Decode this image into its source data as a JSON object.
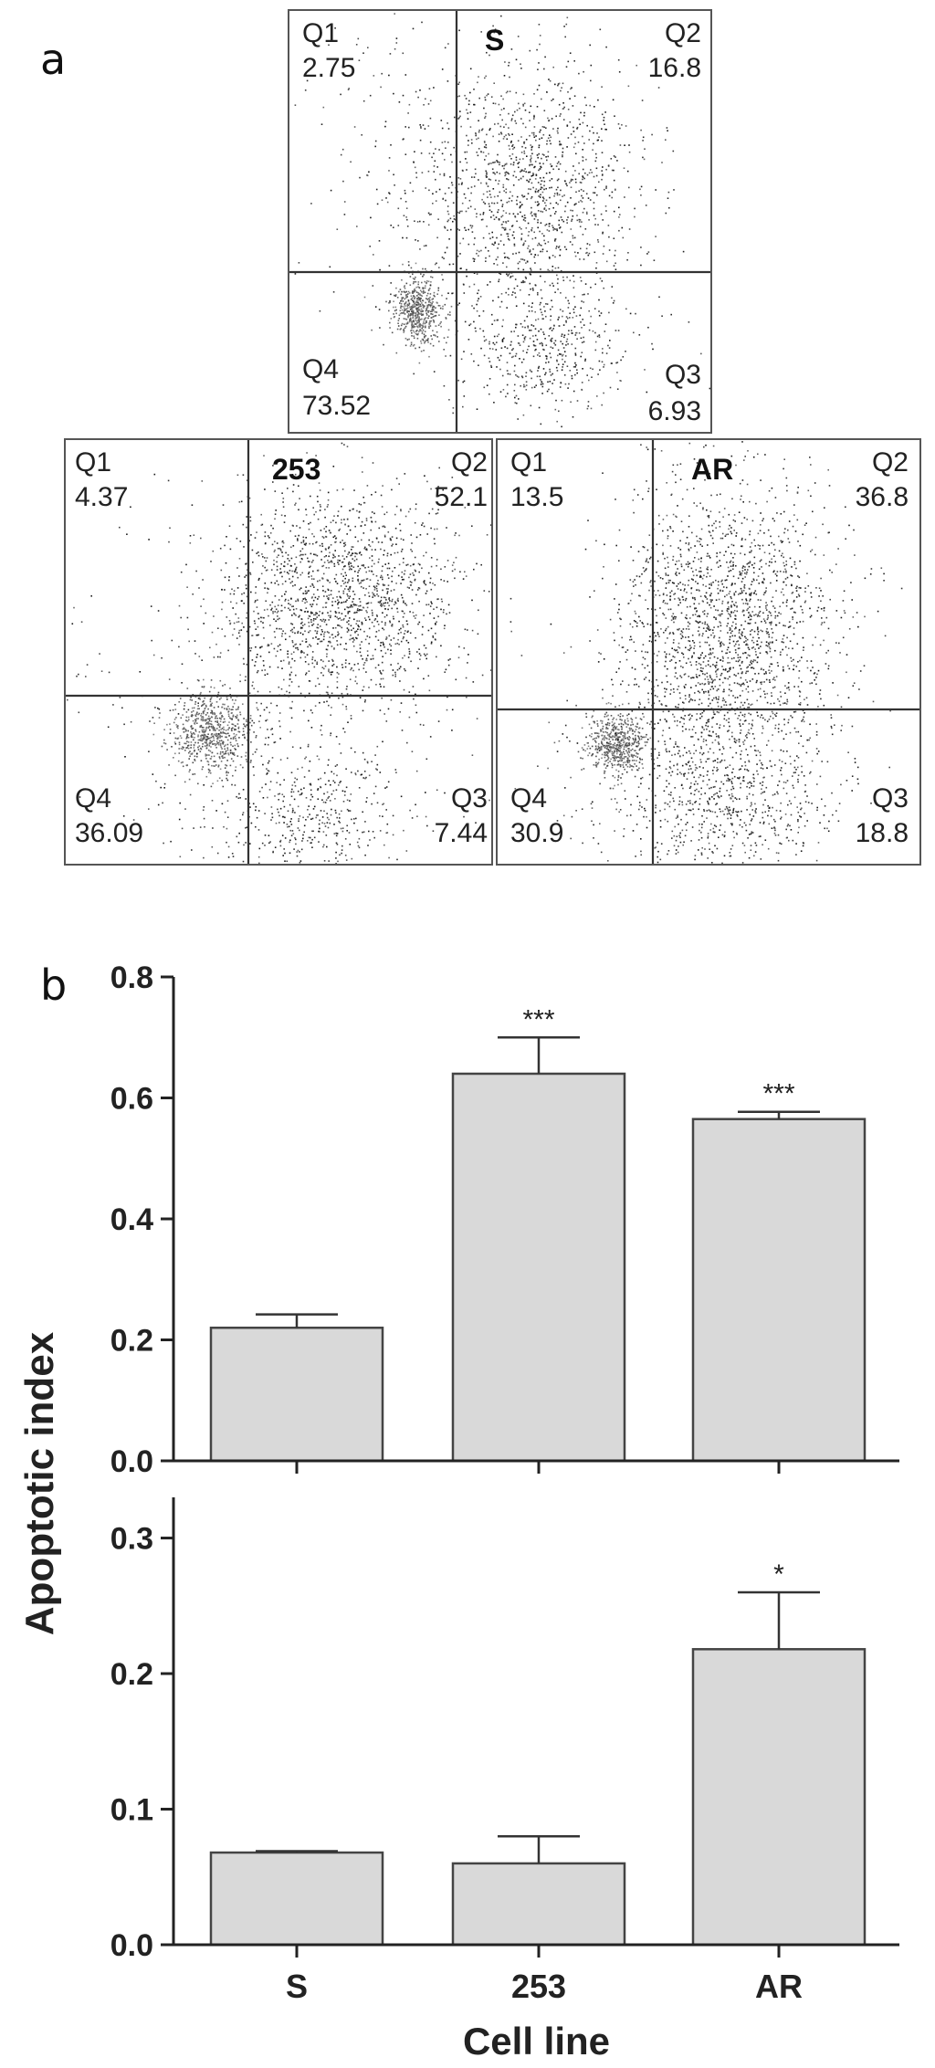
{
  "panels": {
    "a": "a",
    "b": "b"
  },
  "flow_plots": [
    {
      "title": "S",
      "q1": {
        "label": "Q1",
        "value": "2.75"
      },
      "q2": {
        "label": "Q2",
        "value": "16.8"
      },
      "q3": {
        "label": "Q3",
        "value": "6.93"
      },
      "q4": {
        "label": "Q4",
        "value": "73.52"
      }
    },
    {
      "title": "253",
      "q1": {
        "label": "Q1",
        "value": "4.37"
      },
      "q2": {
        "label": "Q2",
        "value": "52.1"
      },
      "q3": {
        "label": "Q3",
        "value": "7.44"
      },
      "q4": {
        "label": "Q4",
        "value": "36.09"
      }
    },
    {
      "title": "AR",
      "q1": {
        "label": "Q1",
        "value": "13.5"
      },
      "q2": {
        "label": "Q2",
        "value": "36.8"
      },
      "q3": {
        "label": "Q3",
        "value": "18.8"
      },
      "q4": {
        "label": "Q4",
        "value": "30.9"
      }
    }
  ],
  "chart_data": [
    {
      "type": "bar",
      "categories": [
        "S",
        "253",
        "AR"
      ],
      "values": [
        0.22,
        0.64,
        0.565
      ],
      "errors": [
        0.022,
        0.06,
        0.012
      ],
      "annotations": [
        "",
        "***",
        "***"
      ],
      "ylabel": "Apoptotic index",
      "ylim": [
        0,
        0.8
      ],
      "yticks": [
        "0.0",
        "0.2",
        "0.4",
        "0.6",
        "0.8"
      ],
      "bar_color": "#d9d9d9"
    },
    {
      "type": "bar",
      "categories": [
        "S",
        "253",
        "AR"
      ],
      "values": [
        0.068,
        0.06,
        0.218
      ],
      "errors": [
        0.001,
        0.02,
        0.042
      ],
      "annotations": [
        "",
        "",
        "*"
      ],
      "xlabel": "Cell line",
      "ylim": [
        0,
        0.33
      ],
      "yticks": [
        "0.0",
        "0.1",
        "0.2",
        "0.3"
      ],
      "bar_color": "#d9d9d9"
    }
  ]
}
